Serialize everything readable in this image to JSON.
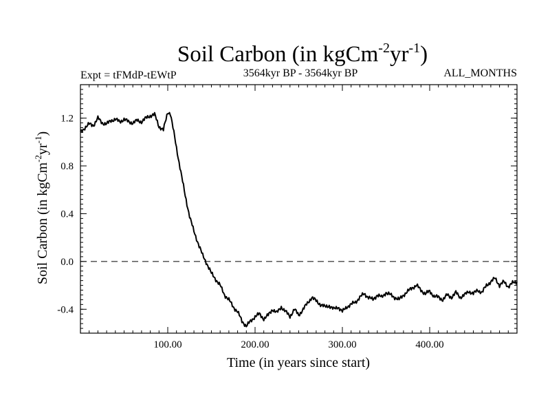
{
  "chart_data": {
    "type": "line",
    "title": "Soil Carbon (in kgCm",
    "title_sup1": "-2",
    "title_mid": "yr",
    "title_sup2": "-1",
    "title_end": ")",
    "subtitle_left": "Expt = tFMdP-tEWtP",
    "subtitle_center": "3564kyr BP - 3564kyr BP",
    "subtitle_right": "ALL_MONTHS",
    "xlabel": "Time (in years since start)",
    "ylabel": "Soil Carbon (in kgCm",
    "ylabel_sup1": "-2",
    "ylabel_mid": "yr",
    "ylabel_sup2": "-1",
    "ylabel_end": ")",
    "xlim": [
      0,
      500
    ],
    "ylim": [
      -0.6,
      1.48
    ],
    "x_ticks": [
      100,
      200,
      300,
      400
    ],
    "x_tick_labels": [
      "100.00",
      "200.00",
      "300.00",
      "400.00"
    ],
    "y_ticks": [
      -0.4,
      0.0,
      0.4,
      0.8,
      1.2
    ],
    "y_tick_labels": [
      "-0.4",
      "0.0",
      "0.4",
      "0.8",
      "1.2"
    ],
    "reference_line": 0.0,
    "series": [
      {
        "name": "Soil Carbon",
        "x": [
          0,
          5,
          10,
          15,
          20,
          25,
          30,
          35,
          40,
          45,
          50,
          55,
          60,
          65,
          70,
          75,
          80,
          85,
          90,
          95,
          100,
          103,
          106,
          110,
          115,
          120,
          125,
          130,
          135,
          140,
          145,
          150,
          155,
          160,
          165,
          170,
          175,
          180,
          185,
          190,
          195,
          200,
          205,
          210,
          215,
          220,
          225,
          230,
          235,
          240,
          245,
          250,
          255,
          260,
          265,
          270,
          275,
          280,
          285,
          290,
          295,
          300,
          305,
          310,
          315,
          320,
          325,
          330,
          335,
          340,
          345,
          350,
          355,
          360,
          365,
          370,
          375,
          380,
          385,
          390,
          395,
          400,
          405,
          410,
          415,
          420,
          425,
          430,
          435,
          440,
          445,
          450,
          455,
          460,
          465,
          470,
          475,
          480,
          485,
          490,
          495,
          500
        ],
        "y": [
          1.08,
          1.12,
          1.15,
          1.14,
          1.2,
          1.16,
          1.15,
          1.18,
          1.19,
          1.17,
          1.19,
          1.17,
          1.16,
          1.18,
          1.17,
          1.2,
          1.22,
          1.23,
          1.13,
          1.1,
          1.25,
          1.24,
          1.12,
          0.95,
          0.75,
          0.55,
          0.38,
          0.25,
          0.15,
          0.05,
          -0.02,
          -0.1,
          -0.15,
          -0.2,
          -0.28,
          -0.32,
          -0.38,
          -0.42,
          -0.5,
          -0.54,
          -0.5,
          -0.46,
          -0.44,
          -0.48,
          -0.45,
          -0.4,
          -0.43,
          -0.38,
          -0.42,
          -0.46,
          -0.4,
          -0.45,
          -0.4,
          -0.35,
          -0.3,
          -0.33,
          -0.36,
          -0.38,
          -0.37,
          -0.4,
          -0.38,
          -0.42,
          -0.38,
          -0.36,
          -0.34,
          -0.3,
          -0.27,
          -0.3,
          -0.32,
          -0.28,
          -0.3,
          -0.26,
          -0.28,
          -0.3,
          -0.32,
          -0.28,
          -0.25,
          -0.22,
          -0.2,
          -0.24,
          -0.27,
          -0.25,
          -0.29,
          -0.3,
          -0.32,
          -0.28,
          -0.3,
          -0.26,
          -0.3,
          -0.28,
          -0.25,
          -0.27,
          -0.24,
          -0.26,
          -0.2,
          -0.17,
          -0.14,
          -0.2,
          -0.17,
          -0.21,
          -0.18,
          -0.17
        ]
      }
    ]
  }
}
